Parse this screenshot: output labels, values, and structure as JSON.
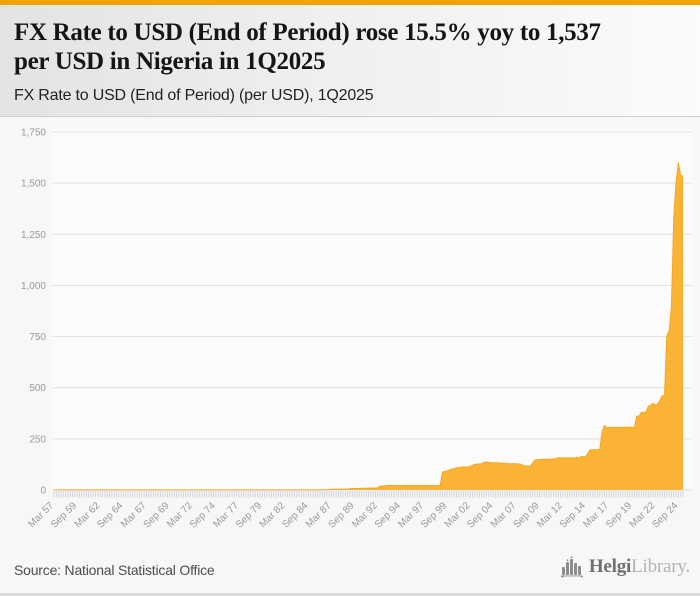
{
  "page": {
    "accent_bar_color": "#F2A405",
    "background": "#f7f7f6"
  },
  "header": {
    "title": "FX Rate to USD (End of Period) rose 15.5% yoy to 1,537 per USD in Nigeria in 1Q2025",
    "title_lines": [
      "FX Rate to USD (End of Period) rose 15.5% yoy to 1,537",
      "per USD in Nigeria in 1Q2025"
    ],
    "subtitle": "FX Rate to USD (End of Period) (per USD), 1Q2025"
  },
  "chart_data": {
    "type": "area",
    "title": "FX Rate to USD (End of Period) (per USD), 1Q2025",
    "xlabel": "",
    "ylabel": "",
    "unit": "NGN per USD",
    "x_frequency": "quarterly",
    "x_range": [
      "Mar 1957",
      "Mar 2025"
    ],
    "x_tick_every": 10,
    "x_tick_labels": [
      "Mar 57",
      "Sep 59",
      "Mar 62",
      "Sep 64",
      "Mar 67",
      "Sep 69",
      "Mar 72",
      "Sep 74",
      "Mar 77",
      "Sep 79",
      "Mar 82",
      "Sep 84",
      "Mar 87",
      "Sep 89",
      "Mar 92",
      "Sep 94",
      "Mar 97",
      "Sep 99",
      "Mar 02",
      "Sep 04",
      "Mar 07",
      "Sep 09",
      "Mar 12",
      "Sep 14",
      "Mar 17",
      "Sep 19",
      "Mar 22",
      "Sep 24"
    ],
    "y_ticks": [
      0,
      250,
      500,
      750,
      1000,
      1250,
      1500,
      1750
    ],
    "y_tick_labels": [
      "0",
      "250",
      "500",
      "750",
      "1,000",
      "1,250",
      "1,500",
      "1,750"
    ],
    "ylim": [
      0,
      1750
    ],
    "grid": true,
    "legend_position": "none",
    "highlight_last_value": 1537,
    "series": [
      {
        "name": "FX Rate to USD (End of Period), per USD",
        "values": [
          0.71,
          0.71,
          0.71,
          0.71,
          0.71,
          0.71,
          0.71,
          0.71,
          0.71,
          0.71,
          0.71,
          0.71,
          0.71,
          0.71,
          0.71,
          0.71,
          0.71,
          0.71,
          0.71,
          0.71,
          0.71,
          0.71,
          0.71,
          0.71,
          0.71,
          0.71,
          0.71,
          0.71,
          0.71,
          0.71,
          0.71,
          0.71,
          0.71,
          0.71,
          0.71,
          0.71,
          0.71,
          0.71,
          0.71,
          0.71,
          0.71,
          0.71,
          0.71,
          0.71,
          0.71,
          0.71,
          0.71,
          0.71,
          0.71,
          0.71,
          0.71,
          0.71,
          0.71,
          0.71,
          0.71,
          0.71,
          0.7,
          0.7,
          0.69,
          0.69,
          0.66,
          0.66,
          0.66,
          0.66,
          0.66,
          0.66,
          0.66,
          0.66,
          0.63,
          0.63,
          0.63,
          0.63,
          0.62,
          0.62,
          0.62,
          0.62,
          0.63,
          0.63,
          0.63,
          0.63,
          0.64,
          0.64,
          0.64,
          0.64,
          0.64,
          0.64,
          0.64,
          0.64,
          0.6,
          0.6,
          0.6,
          0.6,
          0.55,
          0.55,
          0.55,
          0.55,
          0.61,
          0.62,
          0.63,
          0.64,
          0.67,
          0.67,
          0.67,
          0.67,
          0.7,
          0.71,
          0.72,
          0.72,
          0.76,
          0.77,
          0.77,
          0.77,
          0.85,
          0.87,
          0.89,
          0.89,
          0.97,
          1.0,
          1.5,
          3.3,
          3.9,
          4.0,
          4.1,
          4.1,
          4.3,
          4.4,
          4.6,
          4.5,
          7.0,
          7.2,
          7.3,
          7.4,
          7.9,
          8.1,
          8.5,
          8.7,
          9.4,
          9.6,
          9.8,
          9.9,
          10.6,
          18.7,
          19.5,
          19.7,
          22.1,
          22.1,
          22.1,
          22.1,
          22.0,
          22.0,
          22.0,
          22.0,
          22.0,
          22.0,
          22.0,
          22.0,
          22.0,
          22.0,
          22.0,
          22.0,
          22.0,
          22.0,
          22.0,
          22.0,
          22.0,
          22.0,
          22.0,
          22.0,
          88,
          90,
          94,
          98,
          102,
          104,
          108,
          110,
          112,
          113,
          112,
          113,
          116,
          120,
          126,
          126,
          128,
          129,
          136,
          137,
          135,
          133,
          133,
          133,
          133,
          132,
          131,
          130,
          129,
          128,
          128,
          128,
          128,
          127,
          126,
          118,
          118,
          118,
          117,
          132,
          147,
          148,
          149,
          149,
          150,
          150,
          151,
          150,
          152,
          154,
          157,
          158,
          157,
          157,
          157,
          157,
          157,
          157,
          160,
          157,
          164,
          163,
          164,
          183,
          197,
          197,
          197,
          197,
          199,
          283,
          315,
          305,
          306,
          305,
          306,
          306,
          305,
          306,
          306,
          307,
          307,
          307,
          307,
          307,
          361,
          361,
          380,
          379,
          380,
          410,
          413,
          424,
          416,
          420,
          437,
          461,
          461,
          756,
          777,
          899,
          1330,
          1505,
          1601,
          1535,
          1537
        ]
      }
    ],
    "colors": {
      "area_fill": "#FBB335",
      "area_stroke": "#F5A81F",
      "grid_color": "#e0e0e0",
      "plot_bg": "#fbfbfb",
      "quarter_tick_color": "#cbd1e1",
      "axis_label_color": "#999999"
    }
  },
  "footer": {
    "source": "Source: National Statistical Office",
    "logo": {
      "brand_primary": "Helgi",
      "brand_secondary": "Library."
    }
  }
}
